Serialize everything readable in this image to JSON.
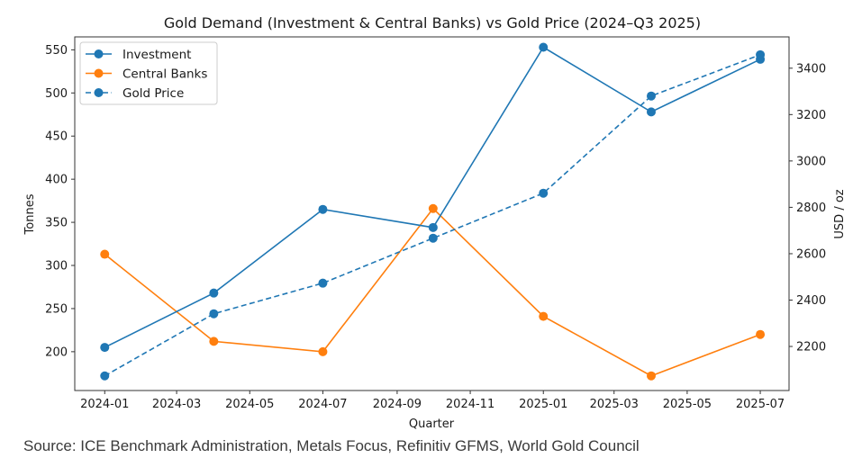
{
  "chart_data": {
    "type": "line",
    "title": "Gold Demand (Investment & Central Banks) vs Gold Price (2024–Q3 2025)",
    "xlabel": "Quarter",
    "ylabel": "Tonnes",
    "y2label": "USD / oz",
    "x": [
      "2024-01-01",
      "2024-04-01",
      "2024-07-01",
      "2024-10-01",
      "2025-01-01",
      "2025-04-01",
      "2025-07-01"
    ],
    "xticks": [
      "2024-01",
      "2024-03",
      "2024-05",
      "2024-07",
      "2024-09",
      "2024-11",
      "2025-01",
      "2025-03",
      "2025-05",
      "2025-07"
    ],
    "yticks": [
      200,
      250,
      300,
      350,
      400,
      450,
      500,
      550
    ],
    "y2ticks": [
      2200,
      2400,
      2600,
      2800,
      3000,
      3200,
      3400
    ],
    "ylim": [
      155,
      565
    ],
    "y2lim": [
      2010,
      3535
    ],
    "xlim": [
      "2023-12-07",
      "2025-07-25"
    ],
    "grid": false,
    "legend_position": "top-left",
    "series": [
      {
        "name": "Investment",
        "axis": "left",
        "style": "solid",
        "color": "#1f77b4",
        "values": [
          205,
          268,
          365,
          344,
          553,
          478,
          539
        ]
      },
      {
        "name": "Central Banks",
        "axis": "left",
        "style": "solid",
        "color": "#ff7f0e",
        "values": [
          313,
          212,
          200,
          366,
          241,
          172,
          220
        ]
      },
      {
        "name": "Gold Price",
        "axis": "right",
        "style": "dashed",
        "color": "#1f77b4",
        "values": [
          2073,
          2341,
          2473,
          2667,
          2861,
          3280,
          3458
        ]
      }
    ]
  },
  "source_note": "Source: ICE Benchmark Administration, Metals Focus, Refinitiv GFMS, World Gold Council"
}
